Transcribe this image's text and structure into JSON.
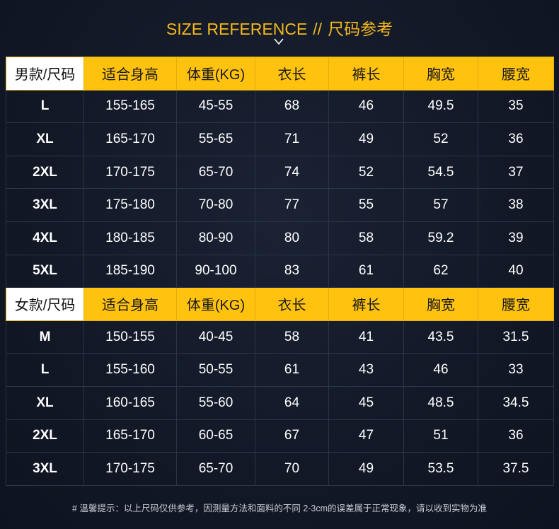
{
  "header": {
    "title_en": "SIZE REFERENCE",
    "separator": "//",
    "title_cn": "尺码参考",
    "chevron_icon": "chevron-down-icon"
  },
  "columns": [
    "适合身高",
    "体重(KG)",
    "衣长",
    "裤长",
    "胸宽",
    "腰宽"
  ],
  "men": {
    "label": "男款/尺码",
    "rows": [
      [
        "L",
        "155-165",
        "45-55",
        "68",
        "46",
        "49.5",
        "35"
      ],
      [
        "XL",
        "165-170",
        "55-65",
        "71",
        "49",
        "52",
        "36"
      ],
      [
        "2XL",
        "170-175",
        "65-70",
        "74",
        "52",
        "54.5",
        "37"
      ],
      [
        "3XL",
        "175-180",
        "70-80",
        "77",
        "55",
        "57",
        "38"
      ],
      [
        "4XL",
        "180-185",
        "80-90",
        "80",
        "58",
        "59.2",
        "39"
      ],
      [
        "5XL",
        "185-190",
        "90-100",
        "83",
        "61",
        "62",
        "40"
      ]
    ]
  },
  "women": {
    "label": "女款/尺码",
    "rows": [
      [
        "M",
        "150-155",
        "40-45",
        "58",
        "41",
        "43.5",
        "31.5"
      ],
      [
        "L",
        "155-160",
        "50-55",
        "61",
        "43",
        "46",
        "33"
      ],
      [
        "XL",
        "160-165",
        "55-60",
        "64",
        "45",
        "48.5",
        "34.5"
      ],
      [
        "2XL",
        "165-170",
        "60-65",
        "67",
        "47",
        "51",
        "36"
      ],
      [
        "3XL",
        "170-175",
        "65-70",
        "70",
        "49",
        "53.5",
        "37.5"
      ]
    ]
  },
  "footer": {
    "note": "# 温馨提示：以上尺码仅供参考，因测量方法和面料的不同 2-3cm的误差属于正常现象，请以收到实物为准"
  },
  "colors": {
    "background": "#121826",
    "accent": "#f4b81c",
    "header_fill": "#ffc20f",
    "grid": "#2c3447"
  }
}
